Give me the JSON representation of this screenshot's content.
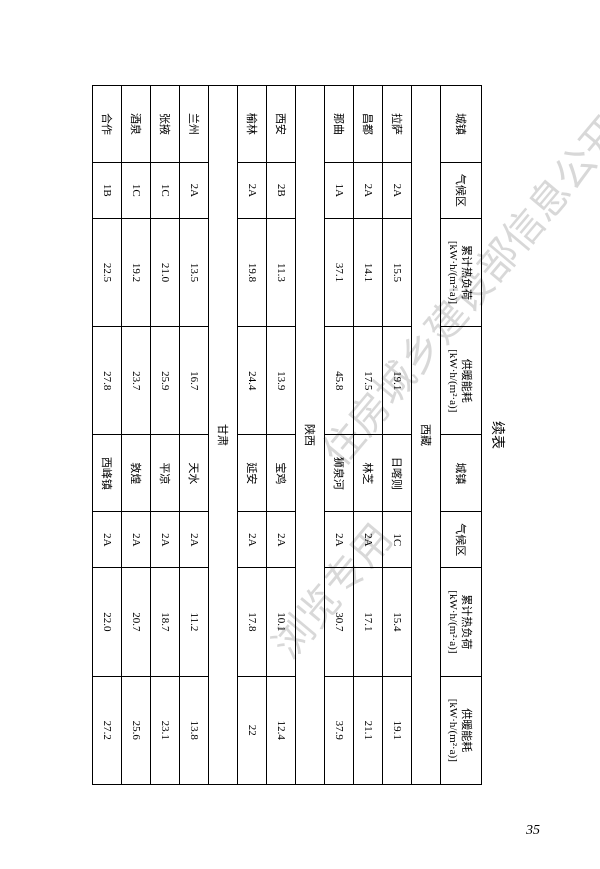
{
  "title": "续表",
  "page_number": "35",
  "watermarks": {
    "line1": "住房城乡建设部信息公开",
    "line2": "浏览专用"
  },
  "headers": {
    "city": "城镇",
    "climate": "气候区",
    "cum_heat": "累计热负荷",
    "cum_heat_unit": "[kW·h/(m²·a)]",
    "heat_energy": "供暖能耗",
    "heat_energy_unit": "[kW·h/(m²·a)]"
  },
  "colwidths": {
    "city": "11%",
    "climate": "8%",
    "cum": "15.5%",
    "energy": "15.5%"
  },
  "sections": [
    {
      "province": "西藏",
      "rows": [
        {
          "c1": "拉萨",
          "z1": "2A",
          "h1": "15.5",
          "e1": "19.1",
          "c2": "日喀则",
          "z2": "1C",
          "h2": "15.4",
          "e2": "19.1"
        },
        {
          "c1": "昌都",
          "z1": "2A",
          "h1": "14.1",
          "e1": "17.5",
          "c2": "林芝",
          "z2": "2A",
          "h2": "17.1",
          "e2": "21.1"
        },
        {
          "c1": "那曲",
          "z1": "1A",
          "h1": "37.1",
          "e1": "45.8",
          "c2": "狮泉河",
          "z2": "2A",
          "h2": "30.7",
          "e2": "37.9"
        }
      ]
    },
    {
      "province": "陕西",
      "rows": [
        {
          "c1": "西安",
          "z1": "2B",
          "h1": "11.3",
          "e1": "13.9",
          "c2": "宝鸡",
          "z2": "2A",
          "h2": "10.1",
          "e2": "12.4"
        },
        {
          "c1": "榆林",
          "z1": "2A",
          "h1": "19.8",
          "e1": "24.4",
          "c2": "延安",
          "z2": "2A",
          "h2": "17.8",
          "e2": "22"
        }
      ]
    },
    {
      "province": "甘肃",
      "rows": [
        {
          "c1": "兰州",
          "z1": "2A",
          "h1": "13.5",
          "e1": "16.7",
          "c2": "天水",
          "z2": "2A",
          "h2": "11.2",
          "e2": "13.8"
        },
        {
          "c1": "张掖",
          "z1": "1C",
          "h1": "21.0",
          "e1": "25.9",
          "c2": "平凉",
          "z2": "2A",
          "h2": "18.7",
          "e2": "23.1"
        },
        {
          "c1": "酒泉",
          "z1": "1C",
          "h1": "19.2",
          "e1": "23.7",
          "c2": "敦煌",
          "z2": "2A",
          "h2": "20.7",
          "e2": "25.6"
        },
        {
          "c1": "合作",
          "z1": "1B",
          "h1": "22.5",
          "e1": "27.8",
          "c2": "西峰镇",
          "z2": "2A",
          "h2": "22.0",
          "e2": "27.2"
        }
      ]
    }
  ]
}
